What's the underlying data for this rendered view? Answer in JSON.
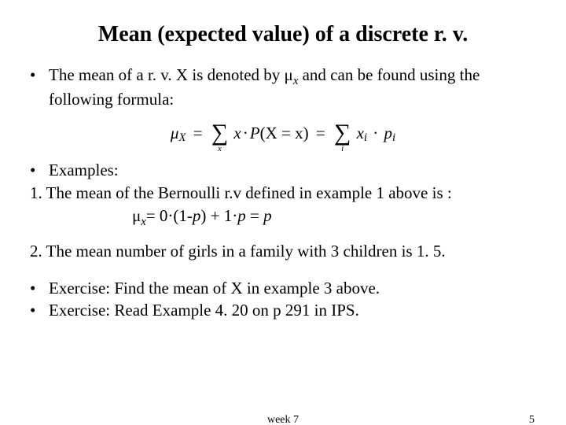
{
  "title": "Mean (expected value) of a discrete r. v.",
  "bullets": {
    "b1a": "The mean of a r. v. X is denoted by μ",
    "b1sub": "x",
    "b1b": " and can be found using the following formula:",
    "b2": "Examples:",
    "ex1": "1. The mean of the Bernoulli r.v defined in example 1 above is :",
    "ex1f_mu": "μ",
    "ex1f_sub": "x",
    "ex1f_rest": "= 0·(1-p) + 1·p = p",
    "ex2": "2. The mean number of girls in a family with 3 children is 1. 5.",
    "b3": "Exercise: Find the mean of X in example 3 above.",
    "b4": "Exercise: Read Example 4. 20 on p 291 in IPS."
  },
  "formula": {
    "mu": "μ",
    "musub": "X",
    "sum_sub1": "x",
    "term1a": "x",
    "term1b": "P",
    "term1c": "(X = x)",
    "sum_sub2": "i",
    "term2a": "x",
    "term2a_sub": "i",
    "term2b": "p",
    "term2b_sub": "i"
  },
  "footer": {
    "center": "week 7",
    "page": "5"
  },
  "style": {
    "background": "#ffffff",
    "text_color": "#000000",
    "title_fontsize": 28,
    "body_fontsize": 21,
    "footer_fontsize": 14
  }
}
